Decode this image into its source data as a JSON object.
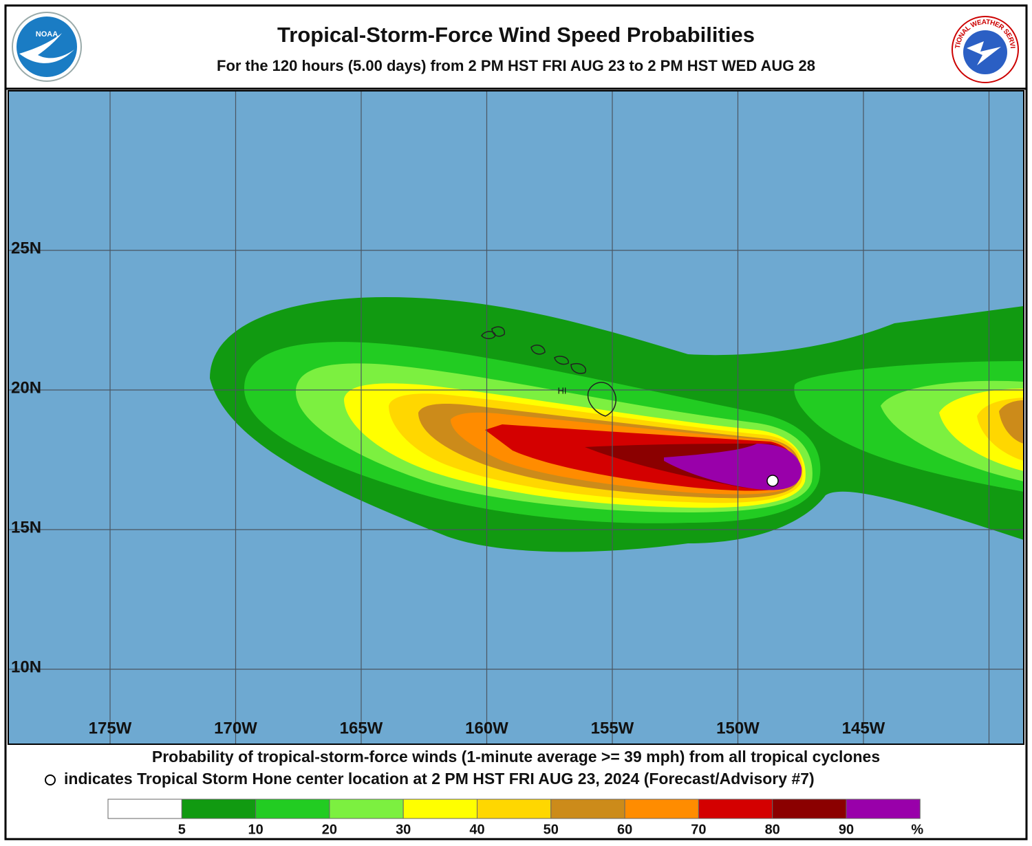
{
  "header": {
    "title": "Tropical-Storm-Force Wind Speed Probabilities",
    "subtitle": "For the 120 hours (5.00 days) from 2 PM HST FRI AUG 23 to 2 PM HST WED AUG 28",
    "noaa_logo_text": "NOAA",
    "nws_logo_text": "NATIONAL WEATHER SERVICE"
  },
  "map": {
    "latitude_labels": [
      "25N",
      "20N",
      "15N",
      "10N"
    ],
    "longitude_labels": [
      "175W",
      "170W",
      "165W",
      "160W",
      "155W",
      "150W",
      "145W"
    ],
    "island_label": "HI"
  },
  "footer": {
    "line1": "Probability of tropical-storm-force winds (1-minute average >= 39 mph) from all tropical cyclones",
    "line2": "indicates Tropical Storm Hone center location at 2 PM HST FRI AUG 23, 2024 (Forecast/Advisory #7)"
  },
  "legend": {
    "colors": [
      "#ffffff",
      "#119a11",
      "#22cc22",
      "#7cf040",
      "#ffff00",
      "#ffd700",
      "#cc8b1a",
      "#ff8c00",
      "#d40000",
      "#8b0000",
      "#9900aa"
    ],
    "labels": [
      "5",
      "10",
      "20",
      "30",
      "40",
      "50",
      "60",
      "70",
      "80",
      "90"
    ],
    "unit": "%"
  }
}
